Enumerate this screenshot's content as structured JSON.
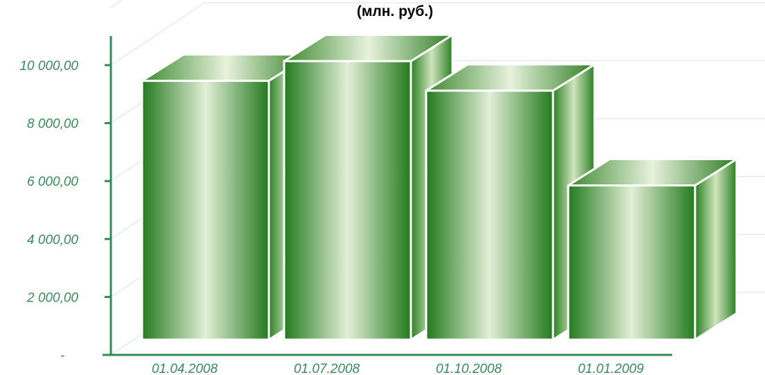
{
  "chart_data": {
    "type": "bar",
    "title": "(млн. руб.)",
    "categories": [
      "01.04.2008",
      "01.07.2008",
      "01.10.2008",
      "01.01.2009"
    ],
    "values": [
      9650,
      10330,
      9310,
      6040
    ],
    "ylim": [
      0,
      12000
    ],
    "yticks": [
      {
        "value": 0,
        "label": "-"
      },
      {
        "value": 2000,
        "label": "2 000,00"
      },
      {
        "value": 4000,
        "label": "4 000,00"
      },
      {
        "value": 6000,
        "label": "6 000,00"
      },
      {
        "value": 8000,
        "label": "8 000,00"
      },
      {
        "value": 10000,
        "label": "10 000,00"
      }
    ],
    "grid": true,
    "three_d": true,
    "colors": {
      "bar_dark": "#237a1e",
      "bar_light": "#e2efd6",
      "axis": "#2f8a58",
      "grid": "#cfeadb",
      "tick_text": "#3a8a5a",
      "edge": "#ffffff"
    }
  }
}
